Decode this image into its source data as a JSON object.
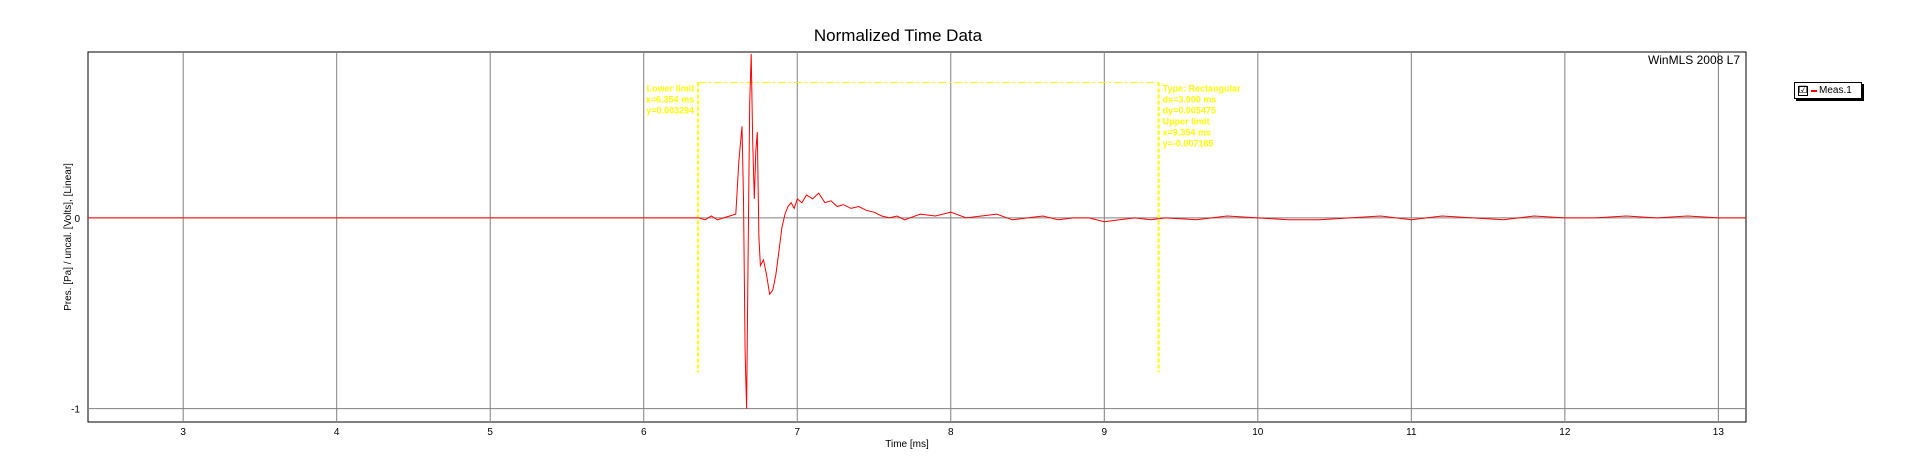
{
  "chart_data": {
    "type": "line",
    "title": "Normalized Time Data",
    "xlabel": "Time [ms]",
    "ylabel": "Pres. [Pa] / uncal. [Volts], [Linear]",
    "xlim": [
      2.38,
      13.18
    ],
    "ylim": [
      -1.07,
      0.87
    ],
    "x_ticks": [
      3,
      4,
      5,
      6,
      7,
      8,
      9,
      10,
      11,
      12,
      13
    ],
    "y_ticks": [
      0,
      -1
    ],
    "grid": true,
    "watermark": "WinMLS 2008 L7",
    "series": [
      {
        "name": "Meas.1",
        "color": "#ff0000",
        "x": [
          2.38,
          6.0,
          6.36,
          6.4,
          6.44,
          6.48,
          6.52,
          6.56,
          6.6,
          6.62,
          6.64,
          6.65,
          6.66,
          6.67,
          6.68,
          6.69,
          6.7,
          6.71,
          6.72,
          6.73,
          6.74,
          6.75,
          6.76,
          6.78,
          6.8,
          6.82,
          6.84,
          6.86,
          6.88,
          6.9,
          6.92,
          6.94,
          6.96,
          6.98,
          7.0,
          7.03,
          7.06,
          7.1,
          7.14,
          7.18,
          7.22,
          7.26,
          7.3,
          7.35,
          7.4,
          7.45,
          7.5,
          7.55,
          7.6,
          7.65,
          7.7,
          7.8,
          7.9,
          8.0,
          8.1,
          8.2,
          8.3,
          8.4,
          8.5,
          8.6,
          8.7,
          8.8,
          8.9,
          9.0,
          9.1,
          9.2,
          9.3,
          9.4,
          9.6,
          9.8,
          10.0,
          10.2,
          10.4,
          10.6,
          10.8,
          11.0,
          11.2,
          11.4,
          11.6,
          11.8,
          12.0,
          12.2,
          12.4,
          12.6,
          12.8,
          13.0,
          13.18
        ],
        "y": [
          0.0,
          0.0,
          0.0,
          -0.01,
          0.01,
          -0.01,
          0.0,
          0.01,
          0.02,
          0.3,
          0.48,
          0.1,
          -0.7,
          -1.0,
          -0.2,
          0.6,
          0.86,
          0.4,
          0.1,
          0.35,
          0.45,
          -0.1,
          -0.25,
          -0.22,
          -0.3,
          -0.4,
          -0.38,
          -0.3,
          -0.18,
          -0.05,
          0.02,
          0.06,
          0.08,
          0.05,
          0.1,
          0.08,
          0.12,
          0.1,
          0.13,
          0.08,
          0.09,
          0.06,
          0.07,
          0.05,
          0.06,
          0.04,
          0.03,
          0.01,
          0.0,
          0.01,
          -0.01,
          0.02,
          0.01,
          0.03,
          0.0,
          0.01,
          0.02,
          -0.01,
          0.0,
          0.01,
          -0.01,
          0.0,
          0.0,
          -0.02,
          -0.01,
          0.0,
          -0.01,
          0.0,
          -0.01,
          0.01,
          0.0,
          -0.01,
          -0.01,
          0.0,
          0.01,
          -0.01,
          0.01,
          0.0,
          -0.01,
          0.01,
          0.0,
          0.0,
          0.01,
          0.0,
          0.01,
          0.0,
          0.0
        ]
      }
    ],
    "cursor": {
      "lower_x": 6.354,
      "upper_x": 9.354,
      "y_top": 0.71,
      "y_bottom": -0.81,
      "color": "#ffff00",
      "lower_label": [
        "Lower limit",
        "x=6.354 ms",
        "y=0.003294"
      ],
      "upper_label": [
        "Type: Rectangular",
        "dx=3.000 ms",
        "dy=0.005475",
        "Upper limit",
        "x=9.354 ms",
        "y=-0.007185"
      ]
    },
    "legend": {
      "position": "top-right",
      "checkbox": "☑",
      "label": "Meas.1"
    }
  }
}
